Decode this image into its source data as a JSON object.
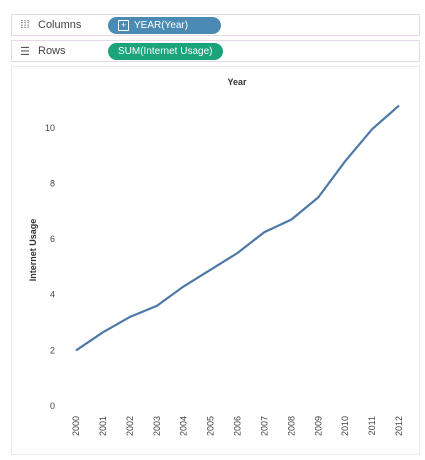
{
  "shelves": {
    "columns": {
      "icon": "columns-icon",
      "label": "Columns",
      "pill": "YEAR(Year)",
      "pill_color": "#4b8ab2"
    },
    "rows": {
      "icon": "rows-icon",
      "label": "Rows",
      "pill": "SUM(Internet Usage)",
      "pill_color": "#1aa477"
    }
  },
  "chart_data": {
    "type": "line",
    "title": "Year",
    "xlabel": "",
    "ylabel": "Internet Usage",
    "x": [
      "2000",
      "2001",
      "2002",
      "2003",
      "2004",
      "2005",
      "2006",
      "2007",
      "2008",
      "2009",
      "2010",
      "2011",
      "2012"
    ],
    "series": [
      {
        "values": [
          2.0,
          2.65,
          3.2,
          3.6,
          4.3,
          4.9,
          5.5,
          6.25,
          6.7,
          7.5,
          8.8,
          9.95,
          10.8
        ]
      }
    ],
    "ylim": [
      0,
      11
    ],
    "yticks": [
      0,
      2,
      4,
      6,
      8,
      10
    ],
    "line_color": "#4e79a7",
    "grid": false
  }
}
